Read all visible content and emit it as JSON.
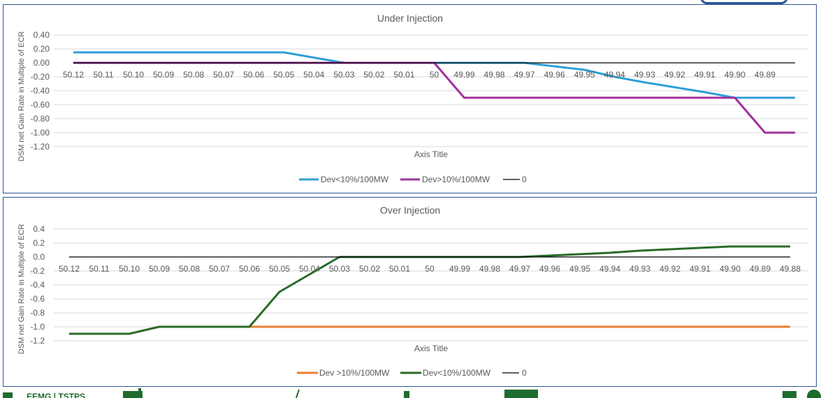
{
  "colors": {
    "border": "#2f5597",
    "grid": "#d9d9d9",
    "text": "#595959",
    "blue": "#2e9fd6",
    "purple": "#a0309f",
    "dark": "#3d1038",
    "orange": "#ed7d31",
    "green": "#2a6b2a",
    "zero_line": "#000000",
    "footer": "#1e6b2e"
  },
  "footer": {
    "logo_text": "EEMG | TSTPS"
  },
  "chart_data": [
    {
      "type": "line",
      "title": "Under Injection",
      "xlabel": "Axis Title",
      "ylabel": "DSM net Gain Rate in Multiple of ECR",
      "ylim": [
        -1.2,
        0.4
      ],
      "yticks": [
        0.4,
        0.2,
        0.0,
        -0.2,
        -0.4,
        -0.6,
        -0.8,
        -1.0,
        -1.2
      ],
      "ytick_labels": [
        "0.40",
        "0.20",
        "0.00",
        "-0.20",
        "-0.40",
        "-0.60",
        "-0.80",
        "-1.00",
        "-1.20"
      ],
      "categories": [
        "50.12",
        "50.11",
        "50.10",
        "50.09",
        "50.08",
        "50.07",
        "50.06",
        "50.05",
        "50.04",
        "50.03",
        "50.02",
        "50.01",
        "50",
        "49.99",
        "49.98",
        "49.97",
        "49.96",
        "49.95",
        "49.94",
        "49.93",
        "49.92",
        "49.91",
        "49.90",
        "49.89",
        ""
      ],
      "grid": true,
      "legend_position": "bottom",
      "series": [
        {
          "name": "Dev<10%/100MW",
          "color_key": "blue",
          "values": [
            0.15,
            0.15,
            0.15,
            0.15,
            0.15,
            0.15,
            0.15,
            0.15,
            0.075,
            0,
            0,
            0,
            0,
            0,
            0,
            0,
            -0.05,
            -0.1,
            -0.2,
            -0.28,
            -0.35,
            -0.42,
            -0.5,
            -0.5,
            -0.5
          ]
        },
        {
          "name": "Dev>10%/100MW",
          "color_key": "purple",
          "values": [
            0,
            0,
            0,
            0,
            0,
            0,
            0,
            0,
            0,
            0,
            0,
            0,
            0,
            -0.5,
            -0.5,
            -0.5,
            -0.5,
            -0.5,
            -0.5,
            -0.5,
            -0.5,
            -0.5,
            -0.5,
            -1.0,
            -1.0
          ]
        },
        {
          "name": "0",
          "color_key": "zero_line",
          "values": [
            0,
            0,
            0,
            0,
            0,
            0,
            0,
            0,
            0,
            0,
            0,
            0,
            0,
            0,
            0,
            0,
            0,
            0,
            0,
            0,
            0,
            0,
            0,
            0,
            0
          ]
        }
      ]
    },
    {
      "type": "line",
      "title": "Over Injection",
      "xlabel": "Axis Title",
      "ylabel": "DSM net Gain Rate in Multiple of ECR",
      "ylim": [
        -1.2,
        0.4
      ],
      "yticks": [
        0.4,
        0.2,
        0.0,
        -0.2,
        -0.4,
        -0.6,
        -0.8,
        -1.0,
        -1.2
      ],
      "ytick_labels": [
        "0.4",
        "0.2",
        "0.0",
        "-0.2",
        "-0.4",
        "-0.6",
        "-0.8",
        "-1.0",
        "-1.2"
      ],
      "categories": [
        "50.12",
        "50.11",
        "50.10",
        "50.09",
        "50.08",
        "50.07",
        "50.06",
        "50.05",
        "50.04",
        "50.03",
        "50.02",
        "50.01",
        "50",
        "49.99",
        "49.98",
        "49.97",
        "49.96",
        "49.95",
        "49.94",
        "49.93",
        "49.92",
        "49.91",
        "49.90",
        "49.89",
        "49.88"
      ],
      "grid": true,
      "legend_position": "bottom",
      "series": [
        {
          "name": "Dev >10%/100MW",
          "color_key": "orange",
          "values": [
            null,
            null,
            null,
            null,
            null,
            null,
            -1.0,
            -1.0,
            -1.0,
            -1.0,
            -1.0,
            -1.0,
            -1.0,
            -1.0,
            -1.0,
            -1.0,
            -1.0,
            -1.0,
            -1.0,
            -1.0,
            -1.0,
            -1.0,
            -1.0,
            -1.0,
            -1.0
          ]
        },
        {
          "name": "Dev<10%/100MW",
          "color_key": "green",
          "values": [
            -1.1,
            -1.1,
            -1.1,
            -1.0,
            -1.0,
            -1.0,
            -1.0,
            -0.5,
            -0.25,
            0,
            0,
            0,
            0,
            0,
            0,
            0,
            0.02,
            0.04,
            0.06,
            0.09,
            0.11,
            0.13,
            0.15,
            0.15,
            0.15
          ]
        },
        {
          "name": "0",
          "color_key": "zero_line",
          "values": [
            0,
            0,
            0,
            0,
            0,
            0,
            0,
            0,
            0,
            0,
            0,
            0,
            0,
            0,
            0,
            0,
            0,
            0,
            0,
            0,
            0,
            0,
            0,
            0,
            0
          ]
        }
      ]
    }
  ]
}
